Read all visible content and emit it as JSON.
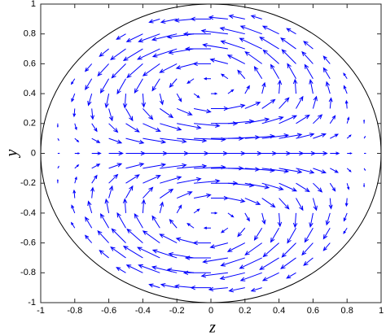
{
  "chart_data": {
    "type": "quiver",
    "x_label": "z",
    "y_label": "y",
    "xlim": [
      -1,
      1
    ],
    "ylim": [
      -1,
      1
    ],
    "xticks": [
      -1,
      -0.8,
      -0.6,
      -0.4,
      -0.2,
      0,
      0.2,
      0.4,
      0.6,
      0.8,
      1
    ],
    "yticks": [
      -1,
      -0.8,
      -0.6,
      -0.4,
      -0.2,
      0,
      0.2,
      0.4,
      0.6,
      0.8,
      1
    ],
    "color": "#0000ff",
    "x": [
      -0.9,
      -0.8,
      -0.7,
      -0.6,
      -0.5,
      -0.4,
      -0.3,
      -0.2,
      -0.1,
      0,
      0.1,
      0.2,
      0.3,
      0.4,
      0.5,
      0.6,
      0.7,
      0.8,
      0.9
    ],
    "y": [
      0.9,
      0.8,
      0.7,
      0.6,
      0.5,
      0.4,
      0.3,
      0.2,
      0.1,
      0,
      -0.1,
      -0.2,
      -0.3,
      -0.4,
      -0.5,
      -0.6,
      -0.7,
      -0.8,
      -0.9
    ],
    "u": [
      [
        null,
        null,
        null,
        null,
        null,
        null,
        -0.31,
        -0.46,
        -0.55,
        -0.58,
        -0.55,
        -0.46,
        -0.31,
        null,
        null,
        null,
        null,
        null,
        null
      ],
      [
        null,
        null,
        null,
        null,
        -0.27,
        -0.47,
        -0.62,
        -0.72,
        -0.77,
        -0.79,
        -0.77,
        -0.72,
        -0.62,
        -0.47,
        -0.27,
        null,
        null,
        null,
        null
      ],
      [
        null,
        null,
        null,
        -0.27,
        -0.44,
        -0.56,
        -0.65,
        -0.7,
        -0.73,
        -0.74,
        -0.73,
        -0.7,
        -0.65,
        -0.56,
        -0.44,
        -0.27,
        null,
        null,
        null
      ],
      [
        null,
        null,
        -0.19,
        -0.32,
        -0.41,
        -0.46,
        -0.49,
        -0.5,
        -0.51,
        -0.51,
        -0.51,
        -0.5,
        -0.49,
        -0.46,
        -0.41,
        -0.32,
        -0.19,
        null,
        null
      ],
      [
        null,
        -0.1,
        -0.19,
        -0.24,
        -0.25,
        -0.24,
        -0.22,
        -0.21,
        -0.19,
        -0.19,
        -0.19,
        -0.21,
        -0.22,
        -0.24,
        -0.25,
        -0.24,
        -0.19,
        -0.1,
        null
      ],
      [
        null,
        -0.09,
        -0.1,
        -0.08,
        -0.03,
        0.03,
        0.08,
        0.13,
        0.16,
        0.17,
        0.16,
        0.13,
        0.08,
        0.03,
        -0.03,
        -0.08,
        -0.1,
        -0.09,
        null
      ],
      [
        null,
        -0.02,
        0.03,
        0.1,
        0.2,
        0.29,
        0.38,
        0.44,
        0.49,
        0.5,
        0.49,
        0.44,
        0.38,
        0.29,
        0.2,
        0.1,
        0.03,
        -0.02,
        null
      ],
      [
        0,
        0.05,
        0.15,
        0.26,
        0.39,
        0.51,
        0.62,
        0.7,
        0.75,
        0.77,
        0.75,
        0.7,
        0.62,
        0.51,
        0.39,
        0.26,
        0.15,
        0.05,
        0
      ],
      [
        0.03,
        0.11,
        0.23,
        0.37,
        0.52,
        0.66,
        0.77,
        0.86,
        0.92,
        0.94,
        0.92,
        0.86,
        0.77,
        0.66,
        0.52,
        0.37,
        0.23,
        0.11,
        0.03
      ],
      [
        0.04,
        0.13,
        0.26,
        0.41,
        0.56,
        0.71,
        0.83,
        0.92,
        0.98,
        1,
        0.98,
        0.92,
        0.83,
        0.71,
        0.56,
        0.41,
        0.26,
        0.13,
        0.04
      ],
      [
        0.03,
        0.11,
        0.23,
        0.37,
        0.52,
        0.66,
        0.77,
        0.86,
        0.92,
        0.94,
        0.92,
        0.86,
        0.77,
        0.66,
        0.52,
        0.37,
        0.23,
        0.11,
        0.03
      ],
      [
        0,
        0.05,
        0.15,
        0.26,
        0.39,
        0.51,
        0.62,
        0.7,
        0.75,
        0.77,
        0.75,
        0.7,
        0.62,
        0.51,
        0.39,
        0.26,
        0.15,
        0.05,
        0
      ],
      [
        null,
        -0.02,
        0.03,
        0.1,
        0.2,
        0.29,
        0.38,
        0.44,
        0.49,
        0.5,
        0.49,
        0.44,
        0.38,
        0.29,
        0.2,
        0.1,
        0.03,
        -0.02,
        null
      ],
      [
        null,
        -0.09,
        -0.1,
        -0.08,
        -0.03,
        0.03,
        0.08,
        0.13,
        0.16,
        0.17,
        0.16,
        0.13,
        0.08,
        0.03,
        -0.03,
        -0.08,
        -0.1,
        -0.09,
        null
      ],
      [
        null,
        -0.1,
        -0.19,
        -0.24,
        -0.25,
        -0.24,
        -0.22,
        -0.21,
        -0.19,
        -0.19,
        -0.19,
        -0.21,
        -0.22,
        -0.24,
        -0.25,
        -0.24,
        -0.19,
        -0.1,
        null
      ],
      [
        null,
        null,
        -0.19,
        -0.32,
        -0.41,
        -0.46,
        -0.49,
        -0.5,
        -0.51,
        -0.51,
        -0.51,
        -0.5,
        -0.49,
        -0.46,
        -0.41,
        -0.32,
        -0.19,
        null,
        null
      ],
      [
        null,
        null,
        null,
        -0.27,
        -0.44,
        -0.56,
        -0.65,
        -0.7,
        -0.73,
        -0.74,
        -0.73,
        -0.7,
        -0.65,
        -0.56,
        -0.44,
        -0.27,
        null,
        null,
        null
      ],
      [
        null,
        null,
        null,
        null,
        -0.27,
        -0.47,
        -0.62,
        -0.72,
        -0.77,
        -0.79,
        -0.77,
        -0.72,
        -0.62,
        -0.47,
        -0.27,
        null,
        null,
        null,
        null
      ],
      [
        null,
        null,
        null,
        null,
        null,
        null,
        -0.31,
        -0.46,
        -0.55,
        -0.58,
        -0.55,
        -0.46,
        -0.31,
        null,
        null,
        null,
        null,
        null,
        null
      ]
    ],
    "v": [
      [
        null,
        null,
        null,
        null,
        null,
        null,
        -0.11,
        -0.11,
        -0.06,
        0,
        0.06,
        0.11,
        0.11,
        null,
        null,
        null,
        null,
        null,
        null
      ],
      [
        null,
        null,
        null,
        null,
        -0.18,
        -0.26,
        -0.26,
        -0.2,
        -0.11,
        0,
        0.11,
        0.2,
        0.26,
        0.26,
        0.18,
        null,
        null,
        null,
        null
      ],
      [
        null,
        null,
        null,
        -0.25,
        -0.36,
        -0.39,
        -0.35,
        -0.26,
        -0.14,
        0,
        0.14,
        0.26,
        0.35,
        0.39,
        0.36,
        0.25,
        null,
        null,
        null
      ],
      [
        null,
        null,
        -0.25,
        -0.4,
        -0.47,
        -0.46,
        -0.4,
        -0.29,
        -0.15,
        0,
        0.15,
        0.29,
        0.4,
        0.46,
        0.47,
        0.4,
        0.25,
        null,
        null
      ],
      [
        null,
        -0.18,
        -0.36,
        -0.47,
        -0.5,
        -0.47,
        -0.4,
        -0.28,
        -0.15,
        0,
        0.15,
        0.28,
        0.4,
        0.47,
        0.5,
        0.47,
        0.36,
        0.18,
        null
      ],
      [
        null,
        -0.26,
        -0.39,
        -0.46,
        -0.47,
        -0.44,
        -0.36,
        -0.26,
        -0.13,
        0,
        0.13,
        0.26,
        0.36,
        0.44,
        0.47,
        0.46,
        0.39,
        0.26,
        null
      ],
      [
        null,
        -0.26,
        -0.35,
        -0.4,
        -0.4,
        -0.36,
        -0.3,
        -0.21,
        -0.11,
        0,
        0.11,
        0.21,
        0.3,
        0.36,
        0.4,
        0.4,
        0.35,
        0.26,
        null
      ],
      [
        -0.11,
        -0.2,
        -0.26,
        -0.29,
        -0.28,
        -0.26,
        -0.21,
        -0.15,
        -0.08,
        0,
        0.08,
        0.15,
        0.21,
        0.26,
        0.28,
        0.29,
        0.26,
        0.2,
        0.11
      ],
      [
        -0.06,
        -0.11,
        -0.14,
        -0.15,
        -0.15,
        -0.13,
        -0.11,
        -0.08,
        -0.04,
        0,
        0.04,
        0.08,
        0.11,
        0.13,
        0.15,
        0.15,
        0.14,
        0.11,
        0.06
      ],
      [
        0,
        0,
        0,
        0,
        0,
        0,
        0,
        0,
        0,
        0,
        0,
        0,
        0,
        0,
        0,
        0,
        0,
        0,
        0
      ],
      [
        0.06,
        0.11,
        0.14,
        0.15,
        0.15,
        0.13,
        0.11,
        0.08,
        0.04,
        0,
        -0.04,
        -0.08,
        -0.11,
        -0.13,
        -0.15,
        -0.15,
        -0.14,
        -0.11,
        -0.06
      ],
      [
        0.11,
        0.2,
        0.26,
        0.29,
        0.28,
        0.26,
        0.21,
        0.15,
        0.08,
        0,
        -0.08,
        -0.15,
        -0.21,
        -0.26,
        -0.28,
        -0.29,
        -0.26,
        -0.2,
        -0.11
      ],
      [
        null,
        0.26,
        0.35,
        0.4,
        0.4,
        0.36,
        0.3,
        0.21,
        0.11,
        0,
        -0.11,
        -0.21,
        -0.3,
        -0.36,
        -0.4,
        -0.4,
        -0.35,
        -0.26,
        null
      ],
      [
        null,
        0.26,
        0.39,
        0.46,
        0.47,
        0.44,
        0.36,
        0.26,
        0.13,
        0,
        -0.13,
        -0.26,
        -0.36,
        -0.44,
        -0.47,
        -0.46,
        -0.39,
        -0.26,
        null
      ],
      [
        null,
        0.18,
        0.36,
        0.47,
        0.5,
        0.47,
        0.4,
        0.28,
        0.15,
        0,
        -0.15,
        -0.28,
        -0.4,
        -0.47,
        -0.5,
        -0.47,
        -0.36,
        -0.18,
        null
      ],
      [
        null,
        null,
        0.25,
        0.4,
        0.47,
        0.46,
        0.4,
        0.29,
        0.15,
        0,
        -0.15,
        -0.29,
        -0.4,
        -0.46,
        -0.47,
        -0.4,
        -0.25,
        null,
        null
      ],
      [
        null,
        null,
        null,
        0.25,
        0.36,
        0.39,
        0.35,
        0.26,
        0.14,
        0,
        -0.14,
        -0.26,
        -0.35,
        -0.39,
        -0.36,
        -0.25,
        null,
        null,
        null
      ],
      [
        null,
        null,
        null,
        null,
        0.18,
        0.26,
        0.26,
        0.2,
        0.11,
        0,
        -0.11,
        -0.2,
        -0.26,
        -0.26,
        -0.18,
        null,
        null,
        null,
        null
      ],
      [
        null,
        null,
        null,
        null,
        null,
        null,
        0.11,
        0.11,
        0.06,
        0,
        -0.06,
        -0.11,
        -0.11,
        null,
        null,
        null,
        null,
        null,
        null
      ]
    ]
  }
}
